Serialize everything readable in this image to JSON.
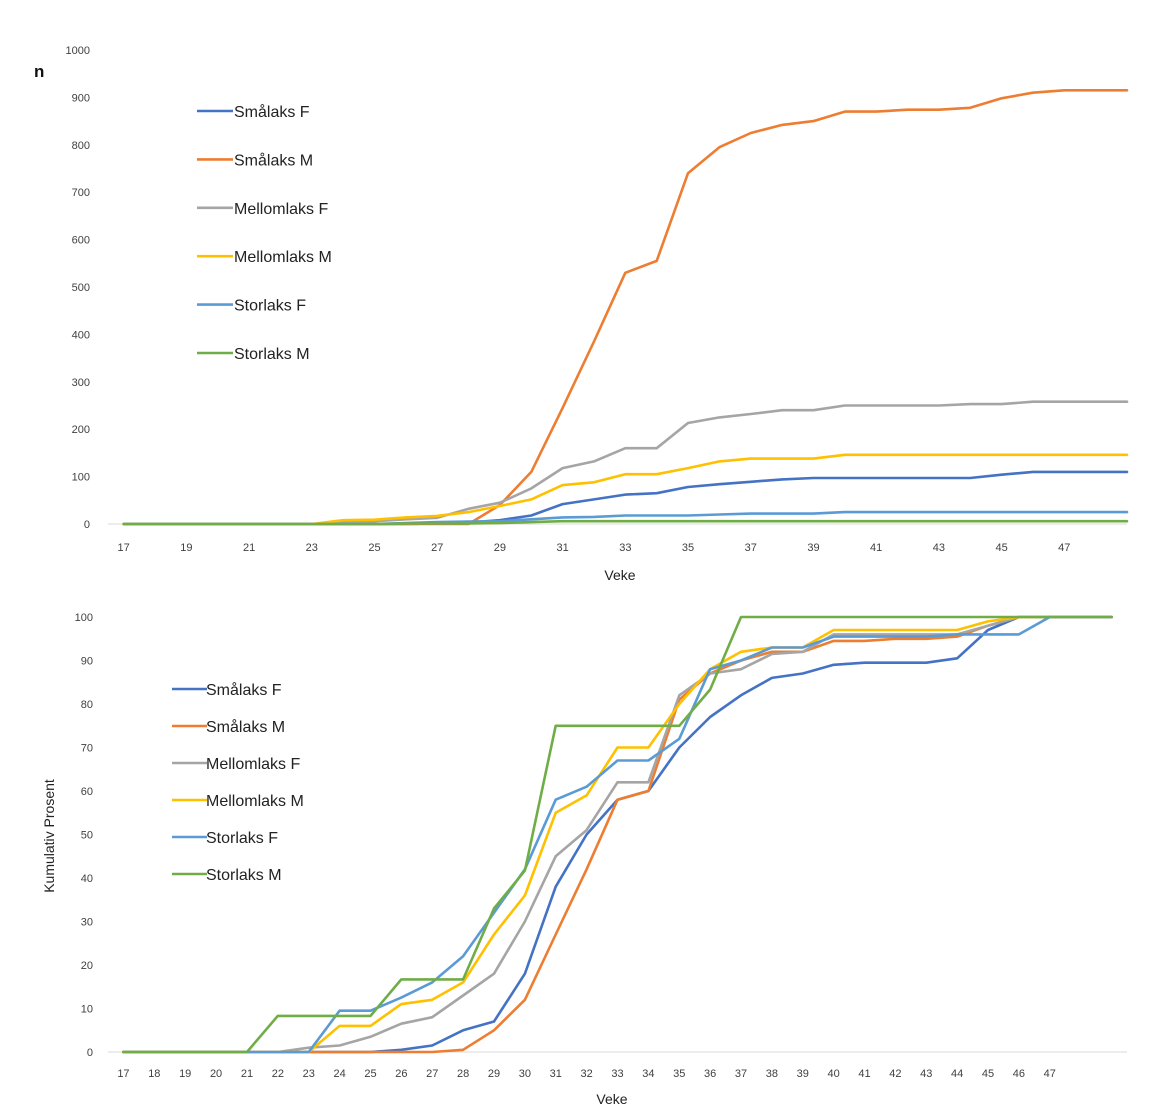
{
  "chart_data": [
    {
      "type": "line",
      "ylabel": "n",
      "xlabel": "Veke",
      "ylim": [
        0,
        1000
      ],
      "yticks": [
        0,
        100,
        200,
        300,
        400,
        500,
        600,
        700,
        800,
        900,
        1000
      ],
      "x": [
        17,
        18,
        19,
        20,
        21,
        22,
        23,
        24,
        25,
        26,
        27,
        28,
        29,
        30,
        31,
        32,
        33,
        34,
        35,
        36,
        37,
        38,
        39,
        40,
        41,
        42,
        43,
        44,
        45,
        46,
        47,
        48,
        49
      ],
      "xtick_labels": [
        "17",
        "19",
        "21",
        "23",
        "25",
        "27",
        "29",
        "31",
        "33",
        "35",
        "37",
        "39",
        "41",
        "43",
        "45",
        "47"
      ],
      "grid": "horizontal-baseline",
      "legend_position": "top-left",
      "series": [
        {
          "name": "Smålaks F",
          "color": "#4472C4",
          "values": [
            0,
            0,
            0,
            0,
            0,
            0,
            0,
            0,
            0,
            0,
            1,
            3,
            8,
            18,
            42,
            52,
            62,
            65,
            78,
            84,
            89,
            94,
            97,
            97,
            97,
            97,
            97,
            97,
            104,
            110,
            110,
            110,
            110
          ]
        },
        {
          "name": "Smålaks M",
          "color": "#ED7D31",
          "values": [
            0,
            0,
            0,
            0,
            0,
            0,
            0,
            0,
            0,
            0,
            0,
            0,
            40,
            110,
            245,
            385,
            530,
            555,
            740,
            795,
            825,
            842,
            850,
            870,
            870,
            874,
            874,
            878,
            898,
            910,
            915,
            915,
            915
          ]
        },
        {
          "name": "Mellomlaks F",
          "color": "#A5A5A5",
          "values": [
            0,
            0,
            0,
            0,
            0,
            0,
            0,
            3,
            6,
            10,
            13,
            32,
            45,
            75,
            118,
            132,
            160,
            160,
            213,
            225,
            232,
            240,
            240,
            250,
            250,
            250,
            250,
            253,
            253,
            258,
            258,
            258,
            258
          ]
        },
        {
          "name": "Mellomlaks M",
          "color": "#FFC000",
          "values": [
            0,
            0,
            0,
            0,
            0,
            0,
            0,
            8,
            9,
            14,
            17,
            25,
            38,
            52,
            82,
            88,
            105,
            105,
            118,
            132,
            138,
            138,
            138,
            146,
            146,
            146,
            146,
            146,
            146,
            146,
            146,
            146,
            146
          ]
        },
        {
          "name": "Storlaks F",
          "color": "#5B9BD5",
          "values": [
            0,
            0,
            0,
            0,
            0,
            0,
            0,
            0,
            0,
            2,
            4,
            5,
            6,
            10,
            14,
            15,
            18,
            18,
            18,
            20,
            22,
            22,
            22,
            25,
            25,
            25,
            25,
            25,
            25,
            25,
            25,
            25,
            25
          ]
        },
        {
          "name": "Storlaks M",
          "color": "#70AD47",
          "values": [
            0,
            0,
            0,
            0,
            0,
            0,
            0,
            0,
            0,
            1,
            1,
            1,
            2,
            4,
            6,
            6,
            6,
            6,
            6,
            6,
            6,
            6,
            6,
            6,
            6,
            6,
            6,
            6,
            6,
            6,
            6,
            6,
            6
          ]
        }
      ]
    },
    {
      "type": "line",
      "ylabel": "Kumulativ Prosent",
      "xlabel": "Veke",
      "ylim": [
        0,
        100
      ],
      "yticks": [
        0,
        10,
        20,
        30,
        40,
        50,
        60,
        70,
        80,
        90,
        100
      ],
      "x": [
        17,
        18,
        19,
        20,
        21,
        22,
        23,
        24,
        25,
        26,
        27,
        28,
        29,
        30,
        31,
        32,
        33,
        34,
        35,
        36,
        37,
        38,
        39,
        40,
        41,
        42,
        43,
        44,
        45,
        46,
        47,
        48,
        49
      ],
      "xtick_labels": [
        "17",
        "18",
        "19",
        "20",
        "21",
        "22",
        "23",
        "24",
        "25",
        "26",
        "27",
        "28",
        "29",
        "30",
        "31",
        "32",
        "33",
        "34",
        "35",
        "36",
        "37",
        "38",
        "39",
        "40",
        "41",
        "42",
        "43",
        "44",
        "45",
        "46",
        "47"
      ],
      "grid": "horizontal-baseline",
      "legend_position": "left",
      "series": [
        {
          "name": "Smålaks F",
          "color": "#4472C4",
          "values": [
            0,
            0,
            0,
            0,
            0,
            0,
            0,
            0,
            0,
            0.5,
            1.5,
            5,
            7,
            18,
            38,
            50,
            58,
            60,
            70,
            77,
            82,
            86,
            87,
            89,
            89.5,
            89.5,
            89.5,
            90.5,
            97,
            100,
            100,
            100,
            100
          ]
        },
        {
          "name": "Smålaks M",
          "color": "#ED7D31",
          "values": [
            0,
            0,
            0,
            0,
            0,
            0,
            0,
            0,
            0,
            0,
            0,
            0.5,
            5,
            12,
            27,
            42,
            58,
            60,
            81,
            87,
            90,
            92,
            92,
            94.5,
            94.5,
            95,
            95,
            95.5,
            98,
            100,
            100,
            100,
            100
          ]
        },
        {
          "name": "Mellomlaks F",
          "color": "#A5A5A5",
          "values": [
            0,
            0,
            0,
            0,
            0,
            0,
            1,
            1.5,
            3.5,
            6.5,
            8,
            13,
            18,
            30,
            45,
            51,
            62,
            62,
            82,
            87,
            88,
            91.5,
            92,
            96,
            96,
            96,
            96,
            96,
            98,
            100,
            100,
            100,
            100
          ]
        },
        {
          "name": "Mellomlaks M",
          "color": "#FFC000",
          "values": [
            0,
            0,
            0,
            0,
            0,
            0,
            0,
            6,
            6,
            11,
            12,
            16,
            27,
            36,
            55,
            59,
            70,
            70,
            80,
            88,
            92,
            93,
            93,
            97,
            97,
            97,
            97,
            97,
            99,
            100,
            100,
            100,
            100
          ]
        },
        {
          "name": "Storlaks F",
          "color": "#5B9BD5",
          "values": [
            0,
            0,
            0,
            0,
            0,
            0,
            0,
            9.5,
            9.5,
            12.5,
            16,
            22,
            32,
            42,
            58,
            61,
            67,
            67,
            72,
            88,
            90,
            93,
            93,
            95.5,
            95.5,
            95.5,
            95.5,
            96,
            96,
            96,
            100,
            100,
            100
          ]
        },
        {
          "name": "Storlaks M",
          "color": "#70AD47",
          "values": [
            0,
            0,
            0,
            0,
            0,
            8.3,
            8.3,
            8.3,
            8.3,
            16.7,
            16.7,
            16.7,
            33,
            41.7,
            75,
            75,
            75,
            75,
            75,
            83.3,
            100,
            100,
            100,
            100,
            100,
            100,
            100,
            100,
            100,
            100,
            100,
            100,
            100
          ]
        }
      ]
    }
  ]
}
